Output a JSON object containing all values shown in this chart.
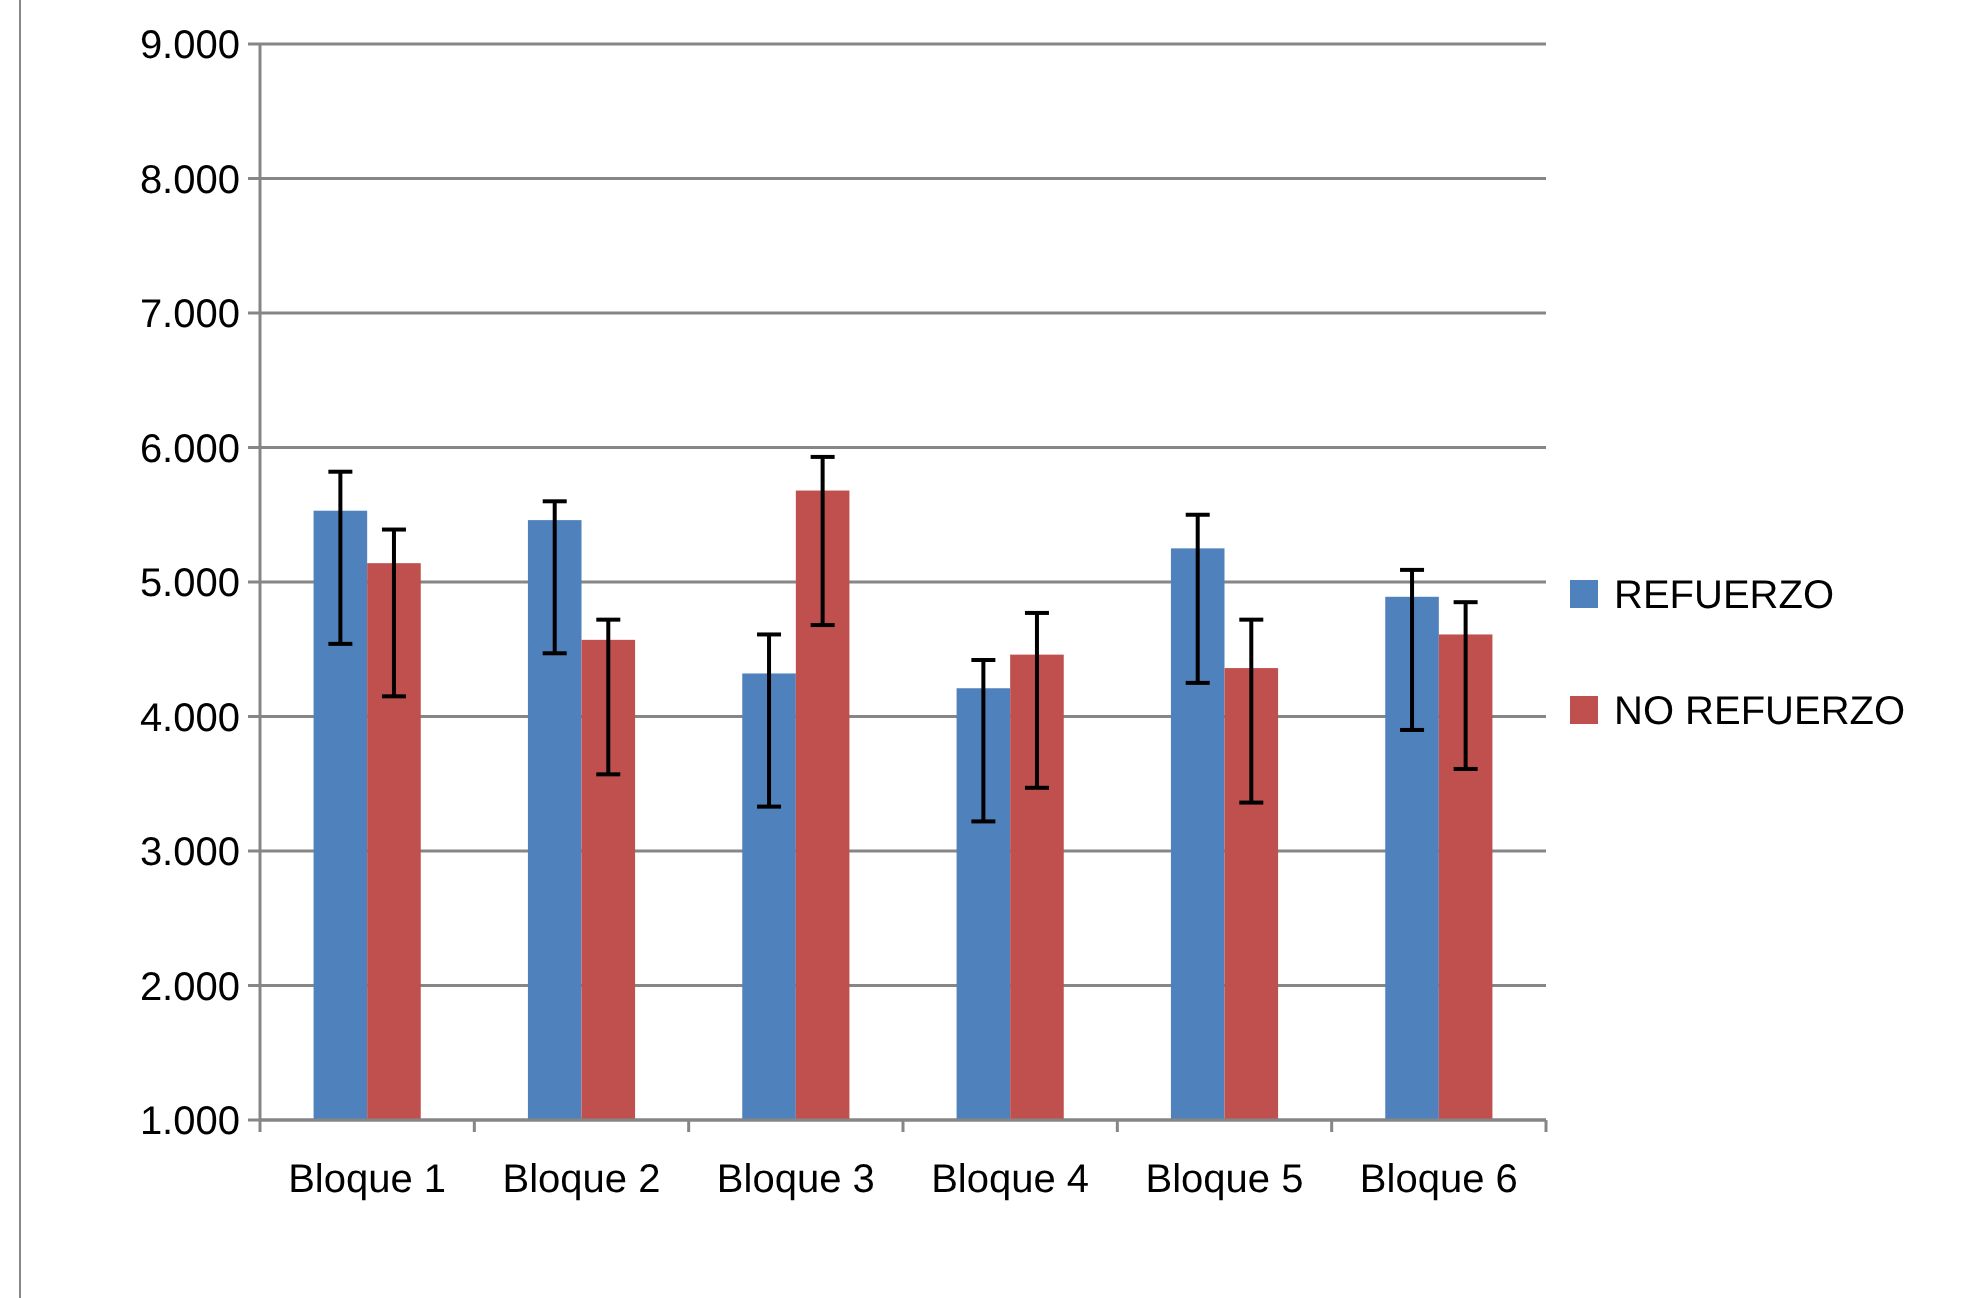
{
  "chart_data": {
    "type": "bar",
    "categories": [
      "Bloque 1",
      "Bloque 2",
      "Bloque 3",
      "Bloque 4",
      "Bloque 5",
      "Bloque 6"
    ],
    "series": [
      {
        "name": "REFUERZO",
        "color": "#4f81bd",
        "values": [
          5.53,
          5.46,
          4.32,
          4.21,
          5.25,
          4.89
        ],
        "errors": [
          [
            4.54,
            5.82
          ],
          [
            4.47,
            5.6
          ],
          [
            3.33,
            4.61
          ],
          [
            3.22,
            4.42
          ],
          [
            4.25,
            5.5
          ],
          [
            3.9,
            5.09
          ]
        ]
      },
      {
        "name": "NO REFUERZO",
        "color": "#c0504d",
        "values": [
          5.14,
          4.57,
          5.68,
          4.46,
          4.36,
          4.61
        ],
        "errors": [
          [
            4.15,
            5.39
          ],
          [
            3.57,
            4.72
          ],
          [
            4.68,
            5.93
          ],
          [
            3.47,
            4.77
          ],
          [
            3.36,
            4.72
          ],
          [
            3.61,
            4.85
          ]
        ]
      }
    ],
    "ylim": [
      1,
      9
    ],
    "yticks": [
      {
        "value": 1,
        "label": "1.000"
      },
      {
        "value": 2,
        "label": "2.000"
      },
      {
        "value": 3,
        "label": "3.000"
      },
      {
        "value": 4,
        "label": "4.000"
      },
      {
        "value": 5,
        "label": "5.000"
      },
      {
        "value": 6,
        "label": "6.000"
      },
      {
        "value": 7,
        "label": "7.000"
      },
      {
        "value": 8,
        "label": "8.000"
      },
      {
        "value": 9,
        "label": "9.000"
      }
    ],
    "grid": "y",
    "legend": "right"
  }
}
